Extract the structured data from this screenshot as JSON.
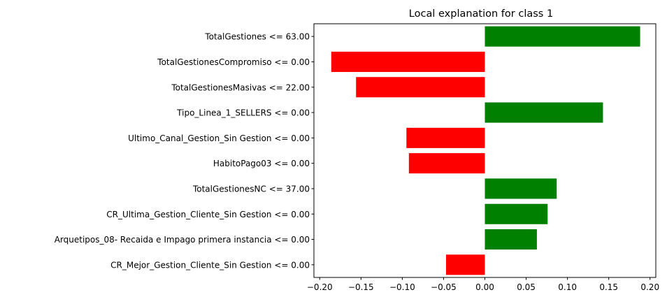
{
  "chart_data": {
    "type": "bar",
    "orientation": "horizontal",
    "title": "Local explanation for class 1",
    "xlabel": "",
    "ylabel": "",
    "xlim": [
      -0.207,
      0.207
    ],
    "xticks": [
      -0.2,
      -0.15,
      -0.1,
      -0.05,
      0.0,
      0.05,
      0.1,
      0.15,
      0.2
    ],
    "xtick_labels": [
      "−0.20",
      "−0.15",
      "−0.10",
      "−0.05",
      "0.00",
      "0.05",
      "0.10",
      "0.15",
      "0.20"
    ],
    "grid": false,
    "positive_color": "#008000",
    "negative_color": "#ff0000",
    "categories": [
      "TotalGestiones <= 63.00",
      "TotalGestionesCompromiso <= 0.00",
      "TotalGestionesMasivas <= 22.00",
      "Tipo_Linea_1_SELLERS <= 0.00",
      "Ultimo_Canal_Gestion_Sin Gestion <= 0.00",
      "HabitoPago03 <= 0.00",
      "TotalGestionesNC <= 37.00",
      "CR_Ultima_Gestion_Cliente_Sin Gestion <= 0.00",
      "Arquetipos_08- Recaida e Impago primera instancia <= 0.00",
      "CR_Mejor_Gestion_Cliente_Sin Gestion <= 0.00"
    ],
    "values": [
      0.188,
      -0.186,
      -0.156,
      0.143,
      -0.095,
      -0.092,
      0.087,
      0.076,
      0.063,
      -0.047
    ]
  }
}
